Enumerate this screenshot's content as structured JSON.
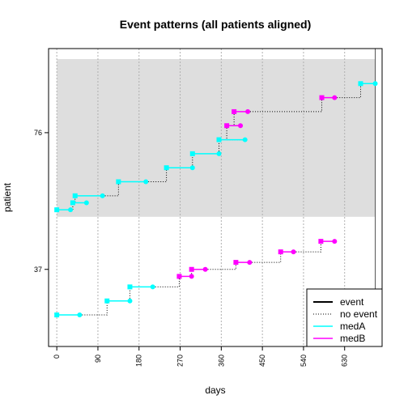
{
  "chart_data": {
    "type": "line",
    "title": "Event patterns (all patients aligned)",
    "xlabel": "days",
    "ylabel": "patient",
    "x_ticks": [
      0,
      90,
      180,
      270,
      360,
      450,
      540,
      630
    ],
    "y_ticks": [
      37,
      76
    ],
    "xlim": [
      -18,
      712
    ],
    "ylim": [
      15,
      100
    ],
    "grid": "vertical dotted at x ticks",
    "legend_position": "bottom-right",
    "legend": [
      {
        "label": "event",
        "style": "solid",
        "color": "#000000"
      },
      {
        "label": "no event",
        "style": "dotted",
        "color": "#000000"
      },
      {
        "label": "medA",
        "style": "solid",
        "color": "#00FFFF"
      },
      {
        "label": "medB",
        "style": "solid",
        "color": "#FF00FF"
      }
    ],
    "colors": {
      "medA": "#00FFFF",
      "medB": "#FF00FF",
      "highlight_band": "#DEDEDE"
    },
    "highlight_band": {
      "x": [
        0,
        697
      ],
      "y": [
        52,
        97
      ]
    },
    "event_line_x": 697,
    "patients": [
      {
        "segments": [
          {
            "med": "medA",
            "start": 0,
            "end": 50,
            "y": 24,
            "gap_to_next": "dotted"
          },
          {
            "med": "medA",
            "start": 110,
            "end": 160,
            "y": 28,
            "gap_to_next": "dotted"
          },
          {
            "med": "medA",
            "start": 160,
            "end": 210,
            "y": 32,
            "gap_to_next": "dotted"
          },
          {
            "med": "medB",
            "start": 268,
            "end": 295,
            "y": 35,
            "gap_to_next": "dotted"
          },
          {
            "med": "medB",
            "start": 295,
            "end": 325,
            "y": 37,
            "gap_to_next": "dotted"
          },
          {
            "med": "medB",
            "start": 392,
            "end": 422,
            "y": 39,
            "gap_to_next": "dotted"
          },
          {
            "med": "medB",
            "start": 490,
            "end": 518,
            "y": 42,
            "gap_to_next": "dotted"
          },
          {
            "med": "medB",
            "start": 578,
            "end": 608,
            "y": 45,
            "gap_to_next": "none"
          }
        ]
      },
      {
        "segments": [
          {
            "med": "medA",
            "start": 0,
            "end": 30,
            "y": 54,
            "gap_to_next": "dotted"
          },
          {
            "med": "medA",
            "start": 35,
            "end": 65,
            "y": 56,
            "gap_to_next": "dotted"
          },
          {
            "med": "medA",
            "start": 40,
            "end": 100,
            "y": 58,
            "gap_to_next": "dotted"
          },
          {
            "med": "medA",
            "start": 135,
            "end": 195,
            "y": 62,
            "gap_to_next": "dotted"
          },
          {
            "med": "medA",
            "start": 240,
            "end": 297,
            "y": 66,
            "gap_to_next": "dotted"
          },
          {
            "med": "medA",
            "start": 297,
            "end": 355,
            "y": 70,
            "gap_to_next": "dotted"
          },
          {
            "med": "medA",
            "start": 355,
            "end": 412,
            "y": 74,
            "gap_to_next": "dotted"
          },
          {
            "med": "medB",
            "start": 372,
            "end": 402,
            "y": 78,
            "gap_to_next": "dotted"
          },
          {
            "med": "medB",
            "start": 388,
            "end": 418,
            "y": 82,
            "gap_to_next": "dotted"
          },
          {
            "med": "medB",
            "start": 580,
            "end": 608,
            "y": 86,
            "gap_to_next": "dotted"
          },
          {
            "med": "medA",
            "start": 665,
            "end": 697,
            "y": 90,
            "gap_to_next": "none"
          }
        ]
      }
    ]
  }
}
